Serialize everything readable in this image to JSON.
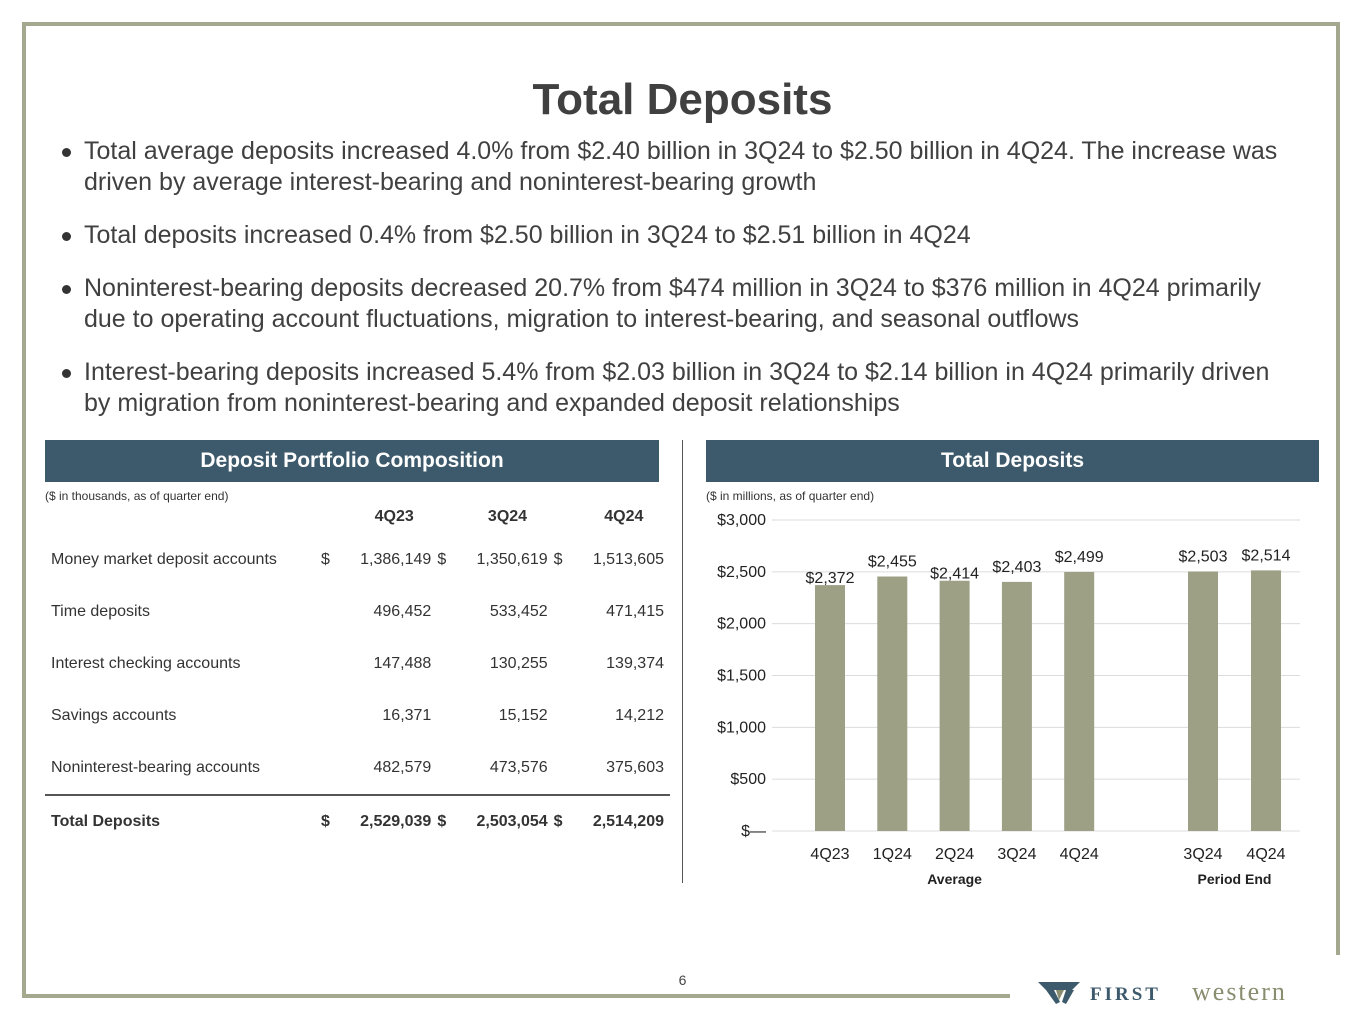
{
  "title": "Total Deposits",
  "bullets": [
    "Total average deposits increased 4.0% from $2.40 billion in 3Q24 to $2.50 billion in 4Q24. The increase was driven by average interest-bearing and noninterest-bearing growth",
    "Total deposits increased 0.4% from $2.50 billion in 3Q24 to $2.51 billion in 4Q24",
    "Noninterest-bearing deposits decreased 20.7% from $474 million in 3Q24 to $376 million in 4Q24 primarily due to operating account fluctuations, migration to interest-bearing, and seasonal outflows",
    "Interest-bearing deposits increased 5.4% from $2.03 billion in 3Q24 to $2.14 billion in 4Q24 primarily driven by migration from noninterest-bearing and expanded deposit relationships"
  ],
  "left_panel": {
    "header": "Deposit Portfolio Composition",
    "note": "($ in thousands, as of quarter end)",
    "columns": [
      "4Q23",
      "3Q24",
      "4Q24"
    ],
    "rows": [
      {
        "label": "Money market deposit accounts",
        "currency": [
          "$",
          "$",
          "$"
        ],
        "values": [
          "1,386,149",
          "1,350,619",
          "1,513,605"
        ]
      },
      {
        "label": "Time deposits",
        "currency": [
          "",
          "",
          ""
        ],
        "values": [
          "496,452",
          "533,452",
          "471,415"
        ]
      },
      {
        "label": "Interest checking accounts",
        "currency": [
          "",
          "",
          ""
        ],
        "values": [
          "147,488",
          "130,255",
          "139,374"
        ]
      },
      {
        "label": "Savings accounts",
        "currency": [
          "",
          "",
          ""
        ],
        "values": [
          "16,371",
          "15,152",
          "14,212"
        ]
      },
      {
        "label": "Noninterest-bearing accounts",
        "currency": [
          "",
          "",
          ""
        ],
        "values": [
          "482,579",
          "473,576",
          "375,603"
        ]
      }
    ],
    "total": {
      "label": "Total Deposits",
      "currency": [
        "$",
        "$",
        "$"
      ],
      "values": [
        "2,529,039",
        "2,503,054",
        "2,514,209"
      ]
    }
  },
  "right_panel": {
    "header": "Total Deposits",
    "note": "($ in millions, as of quarter end)"
  },
  "chart_data": {
    "type": "bar",
    "categories": [
      "4Q23",
      "1Q24",
      "2Q24",
      "3Q24",
      "4Q24",
      "3Q24",
      "4Q24"
    ],
    "values": [
      2372,
      2455,
      2414,
      2403,
      2499,
      2503,
      2514
    ],
    "data_labels": [
      "$2,372",
      "$2,455",
      "$2,414",
      "$2,403",
      "$2,499",
      "$2,503",
      "$2,514"
    ],
    "groups": [
      {
        "name": "Average",
        "indices": [
          0,
          1,
          2,
          3,
          4
        ]
      },
      {
        "name": "Period End",
        "indices": [
          5,
          6
        ]
      }
    ],
    "ylim": [
      0,
      3000
    ],
    "yticks": [
      0,
      500,
      1000,
      1500,
      2000,
      2500,
      3000
    ],
    "ytick_labels": [
      "$—",
      "$500",
      "$1,000",
      "$1,500",
      "$2,000",
      "$2,500",
      "$3,000"
    ],
    "grid": true,
    "bar_color": "#9da085"
  },
  "page_number": "6",
  "logo": {
    "word1": "FIRST",
    "word2": "western"
  },
  "colors": {
    "header_bg": "#3d5a6c",
    "frame": "#a4a88e",
    "bar": "#9da085"
  }
}
